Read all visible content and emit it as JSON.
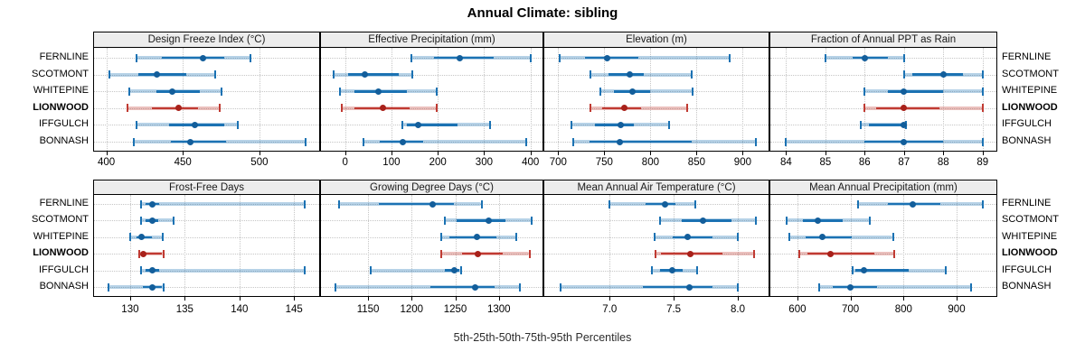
{
  "title": "Annual Climate: sibling",
  "caption": "5th-25th-50th-75th-95th Percentiles",
  "sites": [
    {
      "label": "FERNLINE",
      "highlight": false
    },
    {
      "label": "SCOTMONT",
      "highlight": false
    },
    {
      "label": "WHITEPINE",
      "highlight": false
    },
    {
      "label": "LIONWOOD",
      "highlight": true
    },
    {
      "label": "IFFGULCH",
      "highlight": false
    },
    {
      "label": "BONNASH",
      "highlight": false
    }
  ],
  "colors": {
    "site_line": "#1b72b3",
    "site_dot": "#135e9b",
    "site_band": "rgba(27,114,179,0.32)",
    "highlight_line": "#c03a32",
    "highlight_dot": "#a8211a",
    "highlight_band": "rgba(192,58,50,0.32)",
    "strip_bg": "#ededed",
    "panel_border": "#000000",
    "grid": "#c6c6c6"
  },
  "chart_data": {
    "type": "dotplot",
    "subtype": "lattice percentile dotplot, 2 rows x 4 columns of panels",
    "percentile_labels": [
      "5th",
      "25th",
      "50th",
      "75th",
      "95th"
    ],
    "sites": [
      "FERNLINE",
      "SCOTMONT",
      "WHITEPINE",
      "LIONWOOD",
      "IFFGULCH",
      "BONNASH"
    ],
    "highlight_site": "LIONWOOD",
    "panels": [
      {
        "title": "Design Freeze Index (°C)",
        "grid_row": 0,
        "grid_col": 0,
        "xlim": [
          392,
          539
        ],
        "ticks": [
          400,
          450,
          500
        ],
        "tick_labels": [
          "400",
          "450",
          "500"
        ],
        "values": [
          [
            420,
            436,
            463,
            477,
            494
          ],
          [
            402,
            421,
            433,
            452,
            471
          ],
          [
            415,
            433,
            443,
            461,
            475
          ],
          [
            414,
            430,
            447,
            460,
            474
          ],
          [
            420,
            441,
            458,
            477,
            486
          ],
          [
            418,
            442,
            455,
            478,
            530
          ]
        ]
      },
      {
        "title": "Effective Precipitation (mm)",
        "grid_row": 0,
        "grid_col": 1,
        "xlim": [
          -52,
          426
        ],
        "ticks": [
          0,
          100,
          200,
          300,
          400
        ],
        "tick_labels": [
          "0",
          "100",
          "200",
          "300",
          "400"
        ],
        "values": [
          [
            143,
            191,
            248,
            320,
            400
          ],
          [
            -25,
            7,
            42,
            115,
            145
          ],
          [
            -12,
            21,
            72,
            133,
            197
          ],
          [
            -7,
            21,
            81,
            140,
            197
          ],
          [
            124,
            134,
            157,
            243,
            313
          ],
          [
            40,
            75,
            124,
            169,
            391
          ]
        ]
      },
      {
        "title": "Elevation (m)",
        "grid_row": 0,
        "grid_col": 2,
        "xlim": [
          685,
          928
        ],
        "ticks": [
          700,
          750,
          800,
          850,
          900
        ],
        "tick_labels": [
          "700",
          "750",
          "800",
          "850",
          "900"
        ],
        "values": [
          [
            702,
            729,
            753,
            787,
            886
          ],
          [
            735,
            755,
            778,
            793,
            845
          ],
          [
            746,
            760,
            780,
            800,
            846
          ],
          [
            735,
            748,
            772,
            790,
            840
          ],
          [
            714,
            740,
            768,
            782,
            820
          ],
          [
            716,
            734,
            767,
            845,
            914
          ]
        ]
      },
      {
        "title": "Fraction of Annual PPT as Rain",
        "grid_row": 0,
        "grid_col": 3,
        "xlim": [
          83.6,
          89.35
        ],
        "ticks": [
          84,
          85,
          86,
          87,
          88,
          89
        ],
        "tick_labels": [
          "84",
          "85",
          "86",
          "87",
          "88",
          "89"
        ],
        "values": [
          [
            85,
            85.7,
            86,
            86.6,
            87
          ],
          [
            87,
            87.2,
            88,
            88.5,
            89
          ],
          [
            86,
            86.6,
            87,
            88,
            89
          ],
          [
            86,
            86.3,
            87,
            87.9,
            89
          ],
          [
            85.9,
            86.1,
            87,
            87,
            87.05
          ],
          [
            84,
            86,
            87,
            88,
            89
          ]
        ]
      },
      {
        "title": "Frost-Free Days",
        "grid_row": 1,
        "grid_col": 0,
        "xlim": [
          126.7,
          147.3
        ],
        "ticks": [
          130,
          135,
          140,
          145
        ],
        "tick_labels": [
          "130",
          "135",
          "140",
          "145"
        ],
        "values": [
          [
            131,
            131.4,
            132,
            132.7,
            146
          ],
          [
            131,
            131.4,
            132,
            132.6,
            134
          ],
          [
            130,
            130.6,
            131,
            132,
            133
          ],
          [
            130.8,
            131,
            131.2,
            132.9,
            133.1
          ],
          [
            131,
            131.4,
            132,
            132.7,
            146
          ],
          [
            128,
            131.2,
            132,
            132.9,
            133.1
          ]
        ]
      },
      {
        "title": "Growing Degree Days (°C)",
        "grid_row": 1,
        "grid_col": 1,
        "xlim": [
          1096,
          1350
        ],
        "ticks": [
          1150,
          1200,
          1250,
          1300
        ],
        "tick_labels": [
          "1150",
          "1200",
          "1250",
          "1300"
        ],
        "values": [
          [
            1117,
            1162,
            1224,
            1248,
            1280
          ],
          [
            1238,
            1251,
            1288,
            1307,
            1337
          ],
          [
            1234,
            1243,
            1275,
            1297,
            1320
          ],
          [
            1234,
            1258,
            1276,
            1304,
            1335
          ],
          [
            1153,
            1238,
            1249,
            1255,
            1257
          ],
          [
            1113,
            1221,
            1273,
            1295,
            1324
          ]
        ]
      },
      {
        "title": "Mean Annual Air Temperature (°C)",
        "grid_row": 1,
        "grid_col": 2,
        "xlim": [
          6.49,
          8.24
        ],
        "ticks": [
          7.0,
          7.5,
          8.0
        ],
        "tick_labels": [
          "7.0",
          "7.5",
          "8.0"
        ],
        "values": [
          [
            7.0,
            7.28,
            7.43,
            7.51,
            7.67
          ],
          [
            7.39,
            7.56,
            7.73,
            7.95,
            8.14
          ],
          [
            7.35,
            7.49,
            7.61,
            7.8,
            8.0
          ],
          [
            7.36,
            7.4,
            7.63,
            7.88,
            8.13
          ],
          [
            7.33,
            7.39,
            7.49,
            7.57,
            7.68
          ],
          [
            6.62,
            7.26,
            7.62,
            7.8,
            8.0
          ]
        ]
      },
      {
        "title": "Mean Annual Precipitation (mm)",
        "grid_row": 1,
        "grid_col": 3,
        "xlim": [
          549,
          975
        ],
        "ticks": [
          600,
          700,
          800,
          900
        ],
        "tick_labels": [
          "600",
          "700",
          "800",
          "900"
        ],
        "values": [
          [
            714,
            770,
            818,
            869,
            949
          ],
          [
            580,
            610,
            638,
            686,
            737
          ],
          [
            585,
            615,
            647,
            703,
            780
          ],
          [
            604,
            618,
            663,
            745,
            783
          ],
          [
            704,
            709,
            725,
            810,
            880
          ],
          [
            641,
            666,
            700,
            750,
            927
          ]
        ]
      }
    ]
  }
}
